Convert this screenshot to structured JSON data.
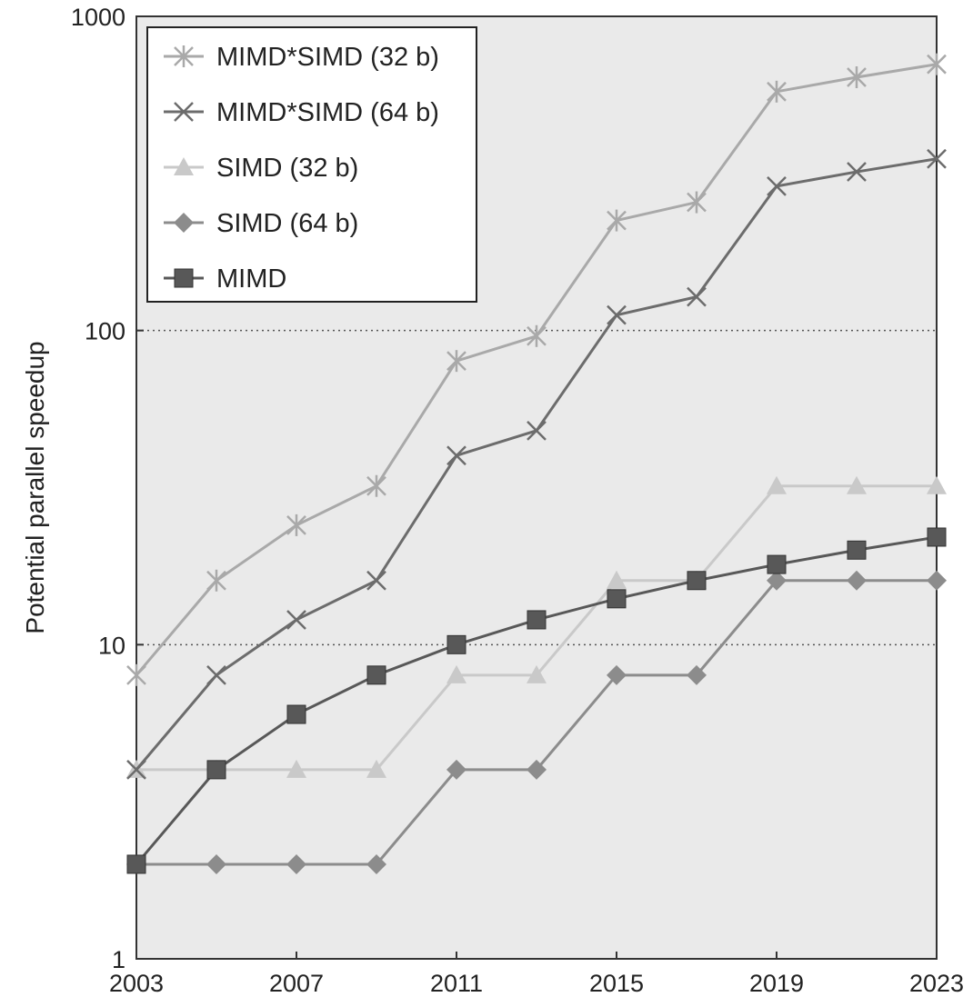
{
  "chart_data": {
    "type": "line",
    "title": "",
    "xlabel": "",
    "ylabel": "Potential parallel speedup",
    "yscale": "log",
    "ylim": [
      1,
      1000
    ],
    "xlim": [
      2003,
      2023
    ],
    "x_ticks": [
      "2003",
      "2007",
      "2011",
      "2015",
      "2019",
      "2023"
    ],
    "y_ticks": [
      "1",
      "10",
      "100",
      "1000"
    ],
    "grid": "dotted horizontal at 10 and 100",
    "legend_position": "top-left",
    "x": [
      2003,
      2005,
      2007,
      2009,
      2011,
      2013,
      2015,
      2017,
      2019,
      2021,
      2023
    ],
    "series": [
      {
        "name": "MIMD*SIMD (32 b)",
        "marker": "asterisk",
        "color": "#a9a9a9",
        "values": [
          8,
          16,
          24,
          32,
          80,
          96,
          224,
          256,
          576,
          640,
          704
        ]
      },
      {
        "name": "MIMD*SIMD (64 b)",
        "marker": "x",
        "color": "#6c6c6c",
        "values": [
          4,
          8,
          12,
          16,
          40,
          48,
          112,
          128,
          288,
          320,
          352
        ]
      },
      {
        "name": "SIMD (32 b)",
        "marker": "triangle",
        "color": "#c9c9c9",
        "values": [
          4,
          4,
          4,
          4,
          8,
          8,
          16,
          16,
          32,
          32,
          32
        ]
      },
      {
        "name": "SIMD (64 b)",
        "marker": "diamond",
        "color": "#8c8c8c",
        "values": [
          2,
          2,
          2,
          2,
          4,
          4,
          8,
          8,
          16,
          16,
          16
        ]
      },
      {
        "name": "MIMD",
        "marker": "square",
        "color": "#585858",
        "values": [
          2,
          4,
          6,
          8,
          10,
          12,
          14,
          16,
          18,
          20,
          22
        ]
      }
    ]
  }
}
